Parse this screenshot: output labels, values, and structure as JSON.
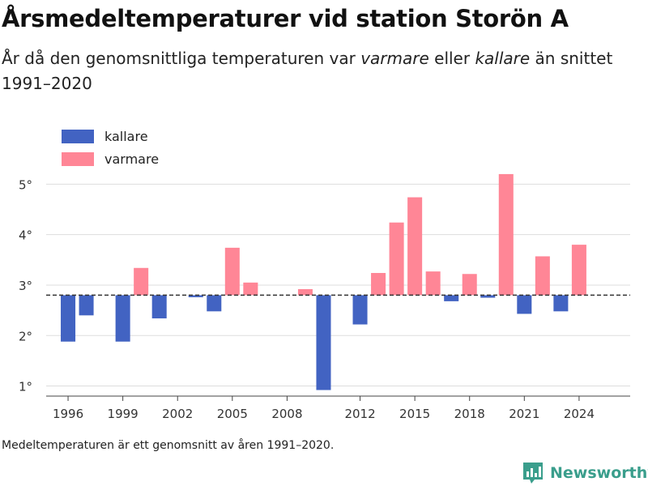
{
  "title": "Årsmedeltemperaturer vid station Storön A",
  "subtitle": {
    "part1": "År då den genomsnittliga temperaturen var ",
    "warmer": "varmare",
    "part2": " eller ",
    "colder": "kallare",
    "part3": " än snittet 1991–2020"
  },
  "footnote": "Medeltemperaturen är ett genomsnitt av åren 1991–2020.",
  "brand": {
    "name": "Newsworthy",
    "icon": "newsworthy-logo-icon"
  },
  "colors": {
    "colder": "#4263c2",
    "warmer": "#ff8696",
    "grid": "#dddddd",
    "axis": "#444444",
    "reference": "#333333"
  },
  "chart_data": {
    "type": "bar",
    "baseline": 2.8,
    "ylim": [
      0.8,
      5.6
    ],
    "yticks": [
      1,
      2,
      3,
      4,
      5
    ],
    "ytick_labels": [
      "1°",
      "2°",
      "3°",
      "4°",
      "5°"
    ],
    "xlim": [
      1994.8,
      2026.8
    ],
    "xticks": [
      1996,
      1999,
      2002,
      2005,
      2008,
      2012,
      2015,
      2018,
      2021,
      2024
    ],
    "legend": {
      "placement": "top-left",
      "items": [
        {
          "label": "kallare",
          "key": "colder"
        },
        {
          "label": "varmare",
          "key": "warmer"
        }
      ]
    },
    "years": [
      1996,
      1997,
      1998,
      1999,
      2000,
      2001,
      2002,
      2003,
      2004,
      2005,
      2006,
      2007,
      2008,
      2009,
      2010,
      2011,
      2012,
      2013,
      2014,
      2015,
      2016,
      2017,
      2018,
      2019,
      2020,
      2021,
      2022,
      2023,
      2024
    ],
    "values": [
      1.88,
      2.4,
      null,
      1.88,
      3.34,
      2.34,
      null,
      2.76,
      2.48,
      3.74,
      3.05,
      null,
      null,
      2.92,
      0.92,
      null,
      2.22,
      3.24,
      4.24,
      4.74,
      3.27,
      2.68,
      3.22,
      2.75,
      5.2,
      2.43,
      3.57,
      2.48,
      3.8
    ]
  }
}
